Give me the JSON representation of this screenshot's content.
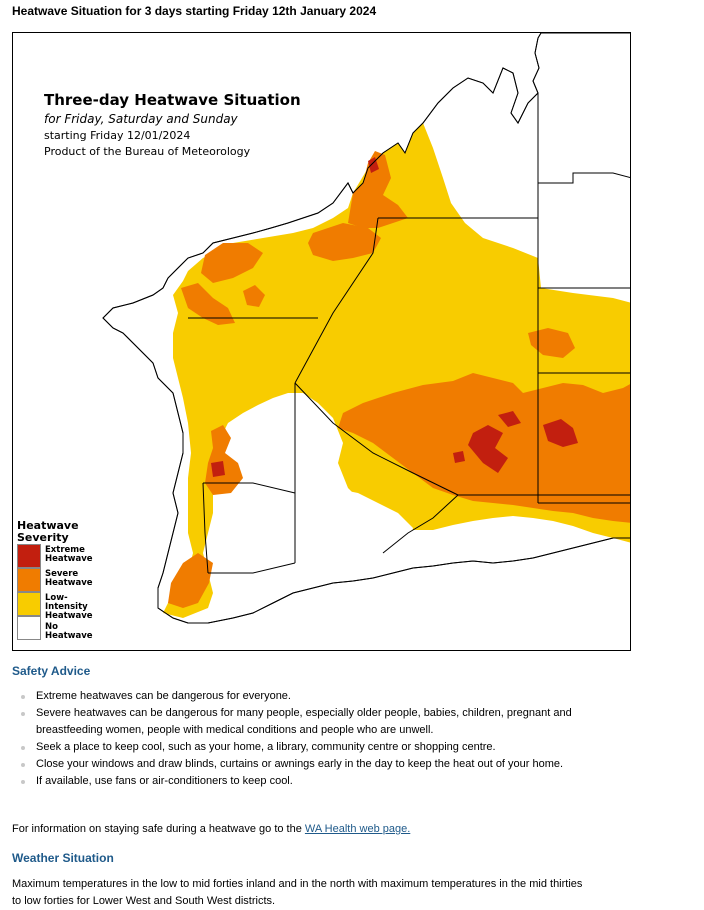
{
  "page": {
    "heading": "Heatwave Situation for 3 days starting Friday 12th January 2024"
  },
  "map": {
    "title": "Three-day Heatwave Situation",
    "subtitle": "for Friday, Saturday and Sunday",
    "start_line": "starting Friday 12/01/2024",
    "product_line": "Product of the Bureau of Meteorology",
    "colors": {
      "extreme": "#c21f0f",
      "severe": "#f07c00",
      "low": "#f8cc00",
      "none": "#ffffff"
    },
    "legend": {
      "title_line1": "Heatwave",
      "title_line2": "Severity",
      "items": [
        {
          "label_line1": "Extreme",
          "label_line2": "Heatwave",
          "color": "#c21f0f"
        },
        {
          "label_line1": "Severe",
          "label_line2": "Heatwave",
          "color": "#f07c00"
        },
        {
          "label_line1": "Low-Intensity",
          "label_line2": "Heatwave",
          "color": "#f8cc00"
        },
        {
          "label_line1": "No Heatwave",
          "label_line2": "",
          "color": "#ffffff"
        }
      ]
    }
  },
  "safety": {
    "heading": "Safety Advice",
    "items": [
      "Extreme heatwaves can be dangerous for everyone.",
      "Severe heatwaves can be dangerous for many people, especially older people, babies, children, pregnant and breastfeeding women, people with medical conditions and people who are unwell.",
      "Seek a place to keep cool, such as your home, a library, community centre or shopping centre.",
      "Close your windows and draw blinds, curtains or awnings early in the day to keep the heat out of your home.",
      "If available, use fans or air-conditioners to keep cool."
    ],
    "info_prefix": "For information on staying safe during a heatwave go to the ",
    "info_link": "WA Health web page."
  },
  "weather": {
    "heading": "Weather Situation",
    "text": "Maximum temperatures in the low to mid forties inland and in the north with maximum temperatures in the mid thirties to low forties for Lower West and South West districts."
  }
}
